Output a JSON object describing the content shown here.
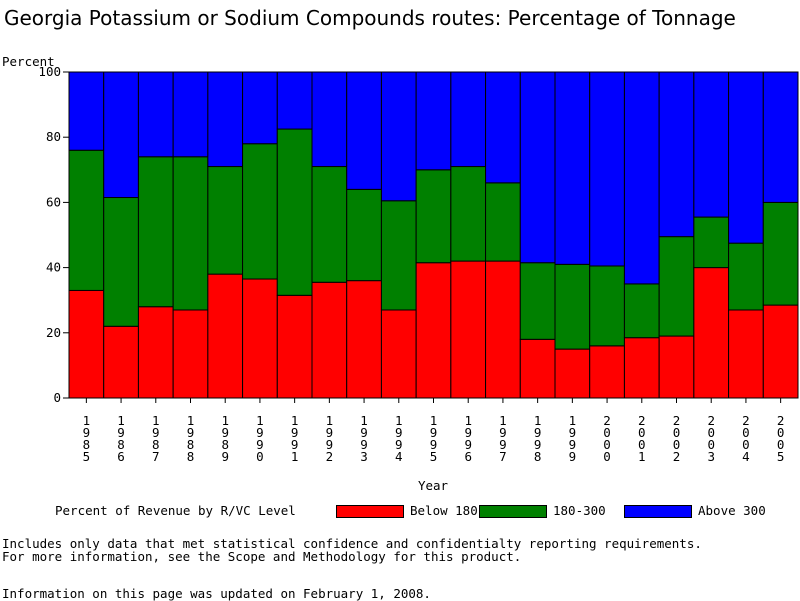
{
  "chart_data": {
    "type": "bar",
    "stacked": true,
    "title": "Georgia Potassium or Sodium Compounds routes: Percentage of Tonnage",
    "ylabel": "Percent",
    "xlabel": "Year",
    "ylim": [
      0,
      100
    ],
    "yticks": [
      0,
      20,
      40,
      60,
      80,
      100
    ],
    "categories": [
      "1985",
      "1986",
      "1987",
      "1988",
      "1989",
      "1990",
      "1991",
      "1992",
      "1993",
      "1994",
      "1995",
      "1996",
      "1997",
      "1998",
      "1999",
      "2000",
      "2001",
      "2002",
      "2003",
      "2004",
      "2005"
    ],
    "legend_title": "Percent of Revenue by R/VC Level",
    "series": [
      {
        "name": "Below 180",
        "color": "#ff0000",
        "values": [
          33,
          22,
          28,
          27,
          38,
          36.5,
          31.5,
          35.5,
          36,
          27,
          41.5,
          42,
          42,
          18,
          15,
          16,
          18.5,
          19,
          40,
          27,
          28.5
        ]
      },
      {
        "name": "180-300",
        "color": "#008000",
        "values": [
          43,
          39.5,
          46,
          47,
          33,
          41.5,
          51,
          35.5,
          28,
          33.5,
          28.5,
          29,
          24,
          23.5,
          26,
          24.5,
          16.5,
          30.5,
          15.5,
          20.5,
          31.5
        ]
      },
      {
        "name": "Above 300",
        "color": "#0000ff",
        "values": [
          24,
          38.5,
          26,
          26,
          29,
          22,
          17.5,
          29,
          36,
          39.5,
          30,
          29,
          34,
          58.5,
          59,
          59.5,
          65,
          50.5,
          44.5,
          52.5,
          40
        ]
      }
    ]
  },
  "notes": {
    "line1": "Includes only data that met statistical confidence and confidentialty reporting requirements.",
    "line2": "For more information, see the Scope and Methodology for this product.",
    "updated": "Information on this page was updated on February 1, 2008."
  }
}
